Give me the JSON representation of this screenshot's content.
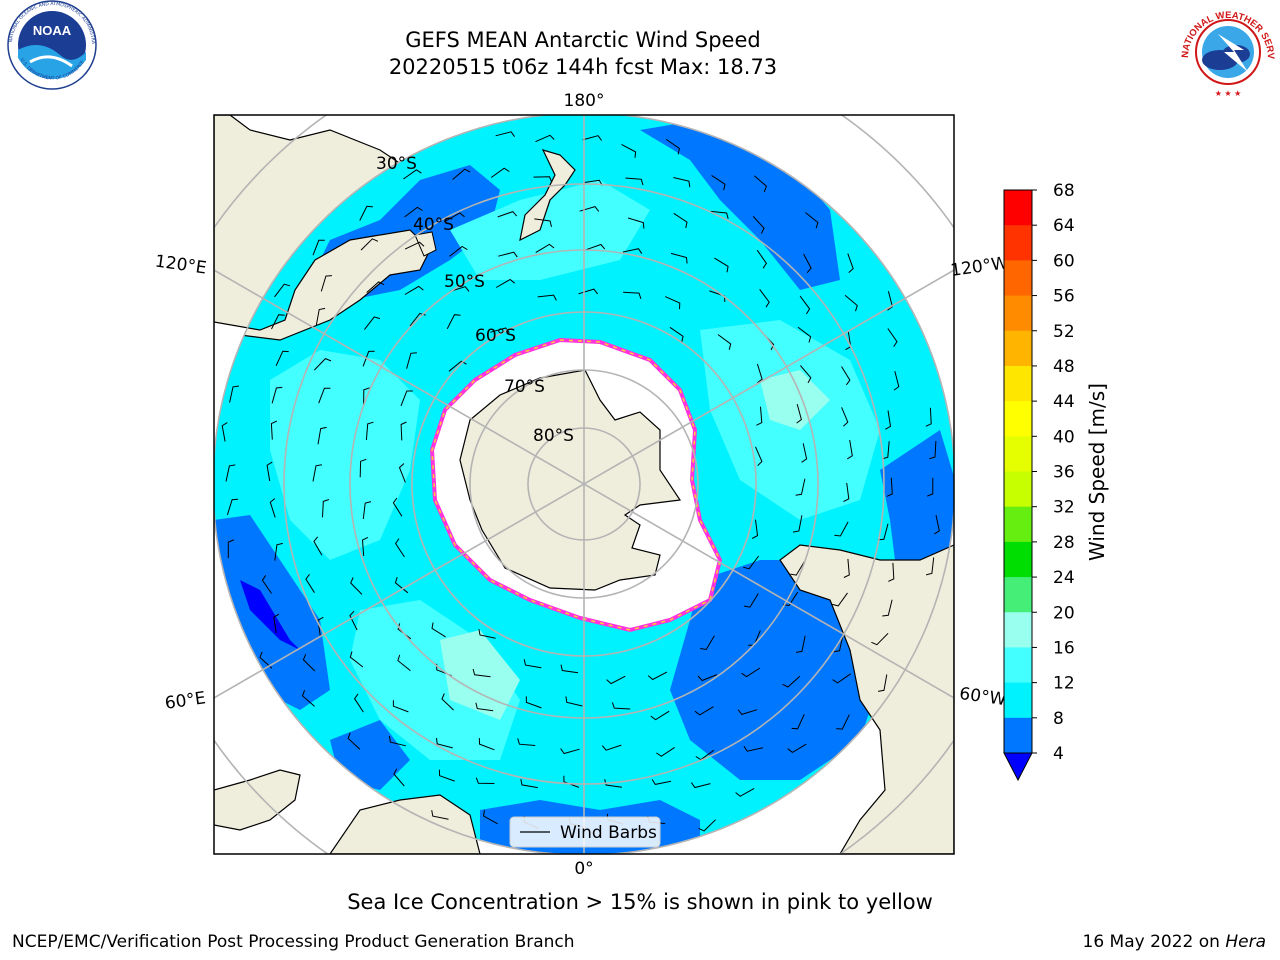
{
  "title": {
    "line1": "GEFS MEAN Antarctic Wind Speed",
    "line2": "20220515 t06z 144h fcst   Max: 18.73"
  },
  "map": {
    "projection": "south-polar-stereographic",
    "longitude_labels": [
      "180°",
      "120°E",
      "120°W",
      "60°E",
      "60°W",
      "0°"
    ],
    "latitude_labels": [
      "30°S",
      "40°S",
      "50°S",
      "60°S",
      "70°S",
      "80°S"
    ],
    "legend": {
      "wind_barbs_label": "Wind Barbs"
    },
    "colors": {
      "land": "#efeddc",
      "sea_ice": "#ffffff",
      "ice_edge_pink": "#ff33dd",
      "ice_edge_yellow": "#ffcc33",
      "grid": "#b4b4b4"
    }
  },
  "colorbar": {
    "title": "Wind Speed [m/s]",
    "ticks": [
      "68",
      "64",
      "60",
      "56",
      "52",
      "48",
      "44",
      "40",
      "36",
      "32",
      "28",
      "24",
      "20",
      "16",
      "12",
      "8",
      "4"
    ],
    "bins": [
      {
        "min": 64,
        "max": 68,
        "color": "#ff0000"
      },
      {
        "min": 60,
        "max": 64,
        "color": "#ff3300"
      },
      {
        "min": 56,
        "max": 60,
        "color": "#ff6600"
      },
      {
        "min": 52,
        "max": 56,
        "color": "#ff8c00"
      },
      {
        "min": 48,
        "max": 52,
        "color": "#ffb400"
      },
      {
        "min": 44,
        "max": 48,
        "color": "#ffe600"
      },
      {
        "min": 40,
        "max": 44,
        "color": "#ffff00"
      },
      {
        "min": 36,
        "max": 40,
        "color": "#e6ff00"
      },
      {
        "min": 32,
        "max": 36,
        "color": "#c8ff00"
      },
      {
        "min": 28,
        "max": 32,
        "color": "#66ee11"
      },
      {
        "min": 24,
        "max": 28,
        "color": "#00dd00"
      },
      {
        "min": 20,
        "max": 24,
        "color": "#44ee77"
      },
      {
        "min": 16,
        "max": 20,
        "color": "#99ffee"
      },
      {
        "min": 12,
        "max": 16,
        "color": "#44ffff"
      },
      {
        "min": 8,
        "max": 12,
        "color": "#00f2ff"
      },
      {
        "min": 4,
        "max": 8,
        "color": "#0077ff"
      }
    ],
    "under_color": "#0000ff"
  },
  "footnote": "Sea Ice Concentration > 15% is shown in pink to yellow",
  "credit_left": "NCEP/EMC/Verification Post Processing Product Generation Branch",
  "credit_date": "16 May 2022 on ",
  "credit_machine": "Hera",
  "logos": {
    "noaa": {
      "text": "NOAA",
      "ring_text": "NATIONAL OCEANIC AND ATMOSPHERIC ADMINISTRATION",
      "bottom_text": "U.S. DEPARTMENT OF COMMERCE"
    },
    "nws": {
      "ring_text": "NATIONAL WEATHER SERVICE"
    }
  }
}
